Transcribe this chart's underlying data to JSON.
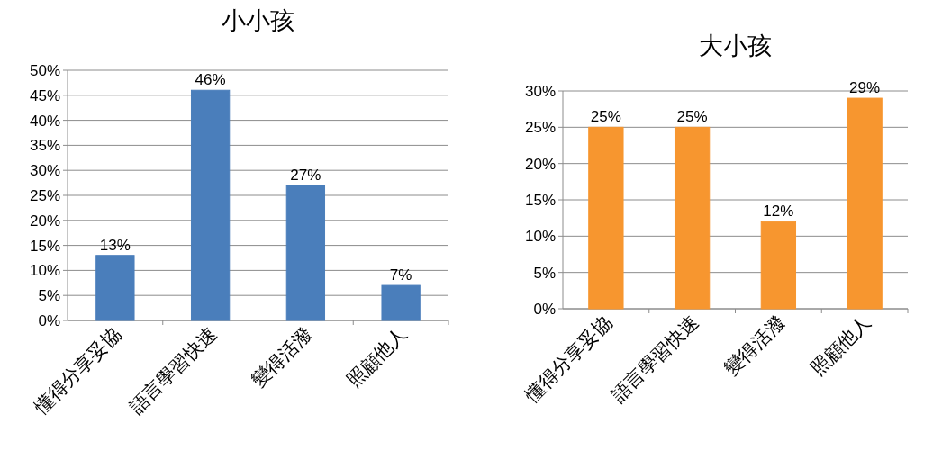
{
  "chart_data": [
    {
      "type": "bar",
      "title": "小小孩",
      "categories": [
        "懂得分享妥協",
        "語言學習快速",
        "變得活潑",
        "照顧他人"
      ],
      "values": [
        13,
        46,
        27,
        7
      ],
      "value_labels": [
        "13%",
        "46%",
        "27%",
        "7%"
      ],
      "color": "#4a7ebb",
      "ylim": [
        0,
        50
      ],
      "yticks": [
        {
          "value": 0,
          "label": "0%"
        },
        {
          "value": 5,
          "label": "5%"
        },
        {
          "value": 10,
          "label": "10%"
        },
        {
          "value": 15,
          "label": "15%"
        },
        {
          "value": 20,
          "label": "20%"
        },
        {
          "value": 25,
          "label": "25%"
        },
        {
          "value": 30,
          "label": "30%"
        },
        {
          "value": 35,
          "label": "35%"
        },
        {
          "value": 40,
          "label": "40%"
        },
        {
          "value": 45,
          "label": "45%"
        },
        {
          "value": 50,
          "label": "50%"
        }
      ],
      "grid": "y"
    },
    {
      "type": "bar",
      "title": "大小孩",
      "categories": [
        "懂得分享妥協",
        "語言學習快速",
        "變得活潑",
        "照顧他人"
      ],
      "values": [
        25,
        25,
        12,
        29
      ],
      "value_labels": [
        "25%",
        "25%",
        "12%",
        "29%"
      ],
      "color": "#f7962f",
      "ylim": [
        0,
        30
      ],
      "yticks": [
        {
          "value": 0,
          "label": "0%"
        },
        {
          "value": 5,
          "label": "5%"
        },
        {
          "value": 10,
          "label": "10%"
        },
        {
          "value": 15,
          "label": "15%"
        },
        {
          "value": 20,
          "label": "20%"
        },
        {
          "value": 25,
          "label": "25%"
        },
        {
          "value": 30,
          "label": "30%"
        }
      ],
      "grid": "y"
    }
  ]
}
